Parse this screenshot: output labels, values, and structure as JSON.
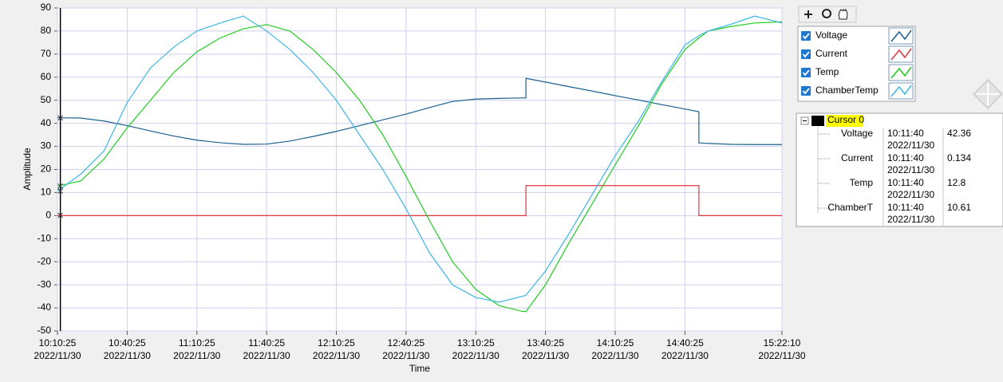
{
  "chart_data": {
    "type": "line",
    "x_label": "Time",
    "y_label": "Amplitude",
    "x_date": "2022/11/30",
    "x": [
      "10:10:25",
      "10:20:25",
      "10:30:25",
      "10:40:25",
      "10:50:25",
      "11:00:25",
      "11:10:25",
      "11:20:25",
      "11:30:25",
      "11:40:25",
      "11:50:25",
      "12:00:25",
      "12:10:25",
      "12:20:25",
      "12:30:25",
      "12:40:25",
      "12:50:25",
      "13:00:25",
      "13:10:25",
      "13:20:25",
      "13:30:25",
      "13:32:00",
      "13:32:00",
      "13:40:25",
      "13:50:25",
      "14:00:25",
      "14:10:25",
      "14:20:25",
      "14:30:25",
      "14:40:25",
      "14:46:25",
      "14:46:25",
      "14:50:25",
      "15:00:25",
      "15:10:25",
      "15:22:10"
    ],
    "series": [
      {
        "name": "Voltage",
        "color": "#1b5f8c",
        "values": [
          42.4,
          42.3,
          41,
          39,
          36.7,
          34.5,
          32.7,
          31.6,
          30.9,
          31,
          32.3,
          34.3,
          36.5,
          39,
          41.5,
          44,
          46.8,
          49.5,
          50.5,
          50.8,
          51,
          51,
          59.5,
          57.9,
          55.9,
          54,
          52,
          50.1,
          48.1,
          46.2,
          45,
          31.5,
          31.3,
          30.9,
          30.8,
          30.8
        ]
      },
      {
        "name": "Current",
        "color": "#e0353a",
        "values": [
          0,
          0,
          0,
          0,
          0,
          0,
          0,
          0,
          0,
          0,
          0,
          0,
          0,
          0,
          0,
          0,
          0,
          0,
          0,
          0,
          0,
          0,
          13,
          13,
          13,
          13,
          13,
          13,
          13,
          13,
          13,
          0,
          0,
          0,
          0,
          0
        ]
      },
      {
        "name": "Temp",
        "color": "#22cc22",
        "values": [
          12.8,
          15,
          24.5,
          38,
          50,
          62,
          71,
          77,
          81,
          82.8,
          80,
          72,
          62,
          50,
          35,
          17,
          -2,
          -20,
          -32,
          -39,
          -41.5,
          -41.6,
          -41.6,
          -30,
          -12,
          5,
          22,
          39,
          57,
          72,
          77,
          77,
          80,
          82,
          83.5,
          84
        ]
      },
      {
        "name": "ChamberTemp",
        "color": "#3db6e6",
        "values": [
          10.6,
          18,
          28,
          49,
          64,
          73,
          80,
          83.5,
          86.5,
          80,
          72,
          62,
          50,
          35,
          20,
          3,
          -16,
          -30,
          -35.5,
          -37.5,
          -35,
          -34.5,
          -34.5,
          -24,
          -8,
          9,
          26,
          41,
          58,
          74,
          78,
          78,
          80,
          83,
          86.5,
          83.5
        ]
      }
    ],
    "xlim": [
      "10:10:25",
      "15:22:10"
    ],
    "xticks": [
      "10:10:25",
      "10:40:25",
      "11:10:25",
      "11:40:25",
      "12:10:25",
      "12:40:25",
      "13:10:25",
      "13:40:25",
      "14:10:25",
      "14:40:25",
      "15:22:10"
    ],
    "ylim": [
      -50,
      90
    ],
    "yticks": [
      -50,
      -40,
      -30,
      -20,
      -10,
      0,
      10,
      20,
      30,
      40,
      50,
      60,
      70,
      80,
      90
    ],
    "grid": true
  },
  "cursor_panel": {
    "name": "Cursor 0",
    "rows": [
      {
        "label": "Voltage",
        "time": "10:11:40",
        "date": "2022/11/30",
        "value": 42.36
      },
      {
        "label": "Current",
        "time": "10:11:40",
        "date": "2022/11/30",
        "value": 0.134
      },
      {
        "label": "Temp",
        "time": "10:11:40",
        "date": "2022/11/30",
        "value": 12.8
      },
      {
        "label": "ChamberT",
        "time": "10:11:40",
        "date": "2022/11/30",
        "value": 10.61
      }
    ]
  }
}
